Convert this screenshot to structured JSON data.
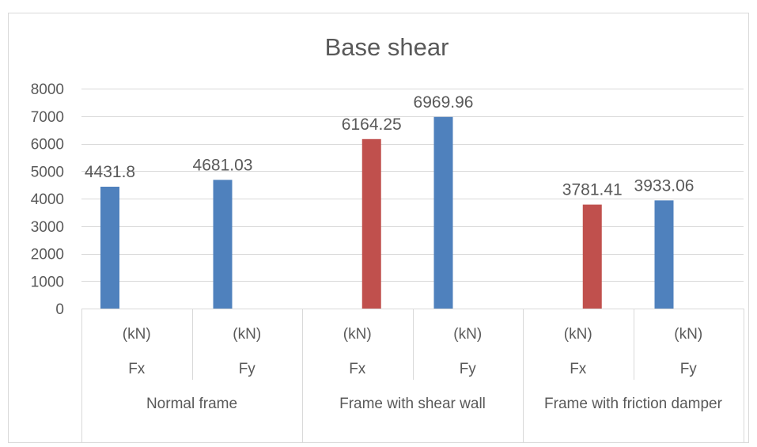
{
  "chart_data": {
    "type": "bar",
    "title": "Base shear",
    "xlabel": "",
    "ylabel": "",
    "ylim": [
      0,
      8000
    ],
    "yticks": [
      0,
      1000,
      2000,
      3000,
      4000,
      5000,
      6000,
      7000,
      8000
    ],
    "grid": true,
    "legend": "none",
    "unit_row": [
      "(kN)",
      "(kN)",
      "(kN)",
      "(kN)",
      "(kN)",
      "(kN)"
    ],
    "component_row": [
      "Fx",
      "Fy",
      "Fx",
      "Fy",
      "Fx",
      "Fy"
    ],
    "groups": [
      "Normal frame",
      "Frame with shear wall",
      "Frame with friction damper"
    ],
    "series": [
      {
        "color": "#c0504d",
        "values": [
          null,
          null,
          6164.25,
          null,
          3781.41,
          null
        ]
      },
      {
        "color": "#4f81bd",
        "values": [
          4431.8,
          4681.03,
          null,
          6969.96,
          null,
          3933.06
        ]
      }
    ],
    "data_labels": [
      "4431.8",
      "4681.03",
      "6164.25",
      "6969.96",
      "3781.41",
      "3933.06"
    ]
  }
}
